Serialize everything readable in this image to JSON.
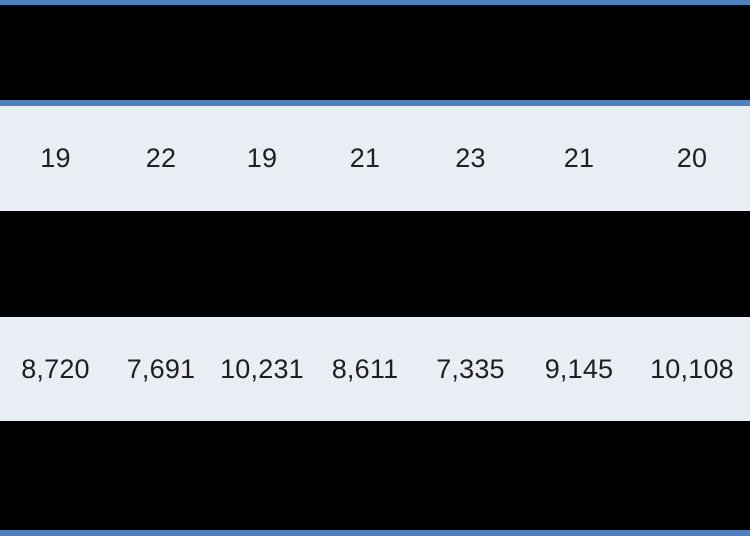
{
  "colors": {
    "accent_blue_border": "#4F81BD",
    "black_band": "#000000",
    "light_band": "#E9EDF4",
    "cell_text": "#1F1F1F"
  },
  "table": {
    "row1_values": [
      "19",
      "22",
      "19",
      "21",
      "23",
      "21",
      "20"
    ],
    "row2_values": [
      "8,720",
      "7,691",
      "10,231",
      "8,611",
      "7,335",
      "9,145",
      "10,108"
    ]
  },
  "chart_data": {
    "type": "table",
    "columns": [
      "",
      "",
      "",
      "",
      "",
      "",
      ""
    ],
    "rows": [
      {
        "label": "",
        "values": [
          19,
          22,
          19,
          21,
          23,
          21,
          20
        ]
      },
      {
        "label": "",
        "values": [
          8720,
          7691,
          10231,
          8611,
          7335,
          9145,
          10108
        ]
      }
    ],
    "title": "",
    "layout_hints": {
      "banding": "alternating black and light #E9EDF4 rows",
      "borders": "blue #4F81BD horizontal rules at top, below header, and bottom",
      "column_gridlines": false,
      "cell_alignment": "center"
    }
  }
}
